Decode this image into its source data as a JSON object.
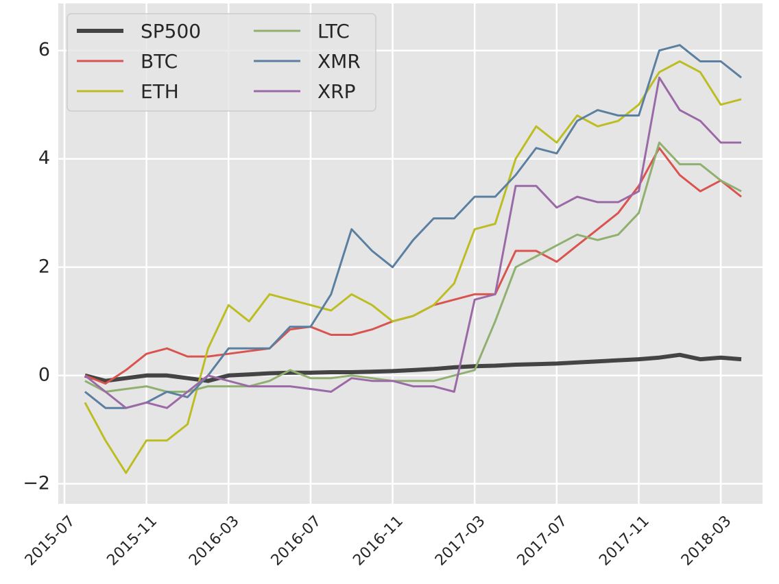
{
  "chart_data": {
    "type": "line",
    "x": [
      "2015-08",
      "2015-09",
      "2015-10",
      "2015-11",
      "2015-12",
      "2016-01",
      "2016-02",
      "2016-03",
      "2016-04",
      "2016-05",
      "2016-06",
      "2016-07",
      "2016-08",
      "2016-09",
      "2016-10",
      "2016-11",
      "2016-12",
      "2017-01",
      "2017-02",
      "2017-03",
      "2017-04",
      "2017-05",
      "2017-06",
      "2017-07",
      "2017-08",
      "2017-09",
      "2017-10",
      "2017-11",
      "2017-12",
      "2018-01",
      "2018-02",
      "2018-03",
      "2018-04"
    ],
    "series": [
      {
        "name": "SP500",
        "color": "#444444",
        "linewidth": 6,
        "values": [
          0,
          -0.1,
          -0.05,
          0,
          0,
          -0.05,
          -0.1,
          0,
          0.02,
          0.04,
          0.05,
          0.05,
          0.06,
          0.06,
          0.07,
          0.08,
          0.1,
          0.12,
          0.15,
          0.17,
          0.18,
          0.2,
          0.21,
          0.22,
          0.24,
          0.26,
          0.28,
          0.3,
          0.33,
          0.38,
          0.3,
          0.33,
          0.3
        ]
      },
      {
        "name": "BTC",
        "color": "#d9534f",
        "linewidth": 3,
        "values": [
          0,
          -0.15,
          0.1,
          0.4,
          0.5,
          0.35,
          0.35,
          0.4,
          0.45,
          0.5,
          0.85,
          0.9,
          0.75,
          0.75,
          0.85,
          1.0,
          1.1,
          1.3,
          1.4,
          1.5,
          1.5,
          2.3,
          2.3,
          2.1,
          2.4,
          2.7,
          3.0,
          3.5,
          4.2,
          3.7,
          3.4,
          3.6,
          3.3
        ]
      },
      {
        "name": "ETH",
        "color": "#bcbd22",
        "linewidth": 3,
        "values": [
          -0.5,
          -1.2,
          -1.8,
          -1.2,
          -1.2,
          -0.9,
          0.5,
          1.3,
          1.0,
          1.5,
          1.4,
          1.3,
          1.2,
          1.5,
          1.3,
          1.0,
          1.1,
          1.3,
          1.7,
          2.7,
          2.8,
          4.0,
          4.6,
          4.3,
          4.8,
          4.6,
          4.7,
          5.0,
          5.6,
          5.8,
          5.6,
          5.0,
          5.1
        ]
      },
      {
        "name": "LTC",
        "color": "#8fb06e",
        "linewidth": 3,
        "values": [
          -0.1,
          -0.3,
          -0.25,
          -0.2,
          -0.3,
          -0.3,
          -0.2,
          -0.2,
          -0.2,
          -0.1,
          0.1,
          -0.05,
          -0.05,
          0.0,
          -0.05,
          -0.1,
          -0.1,
          -0.1,
          0.0,
          0.1,
          1.0,
          2.0,
          2.2,
          2.4,
          2.6,
          2.5,
          2.6,
          3.0,
          4.3,
          3.9,
          3.9,
          3.6,
          3.4
        ]
      },
      {
        "name": "XMR",
        "color": "#5b7fa0",
        "linewidth": 3,
        "values": [
          -0.3,
          -0.6,
          -0.6,
          -0.5,
          -0.3,
          -0.4,
          0.0,
          0.5,
          0.5,
          0.5,
          0.9,
          0.9,
          1.5,
          2.7,
          2.3,
          2.0,
          2.5,
          2.9,
          2.9,
          3.3,
          3.3,
          3.7,
          4.2,
          4.1,
          4.7,
          4.9,
          4.8,
          4.8,
          6.0,
          6.1,
          5.8,
          5.8,
          5.5
        ]
      },
      {
        "name": "XRP",
        "color": "#9b6aa6",
        "linewidth": 3,
        "values": [
          0.0,
          -0.3,
          -0.6,
          -0.5,
          -0.6,
          -0.3,
          0.0,
          -0.1,
          -0.2,
          -0.2,
          -0.2,
          -0.25,
          -0.3,
          -0.05,
          -0.1,
          -0.1,
          -0.2,
          -0.2,
          -0.3,
          1.4,
          1.5,
          3.5,
          3.5,
          3.1,
          3.3,
          3.2,
          3.2,
          3.4,
          5.5,
          4.9,
          4.7,
          4.3,
          4.3
        ]
      }
    ],
    "xlim": [
      "2015-07",
      "2018-04"
    ],
    "xticks": [
      "2015-07",
      "2015-11",
      "2016-03",
      "2016-07",
      "2016-11",
      "2017-03",
      "2017-07",
      "2017-11",
      "2018-03"
    ],
    "ylim": [
      -2.37,
      6.87
    ],
    "yticks": [
      {
        "value": -2,
        "label": "−2"
      },
      0,
      2,
      4,
      6
    ],
    "grid": true,
    "legend": "upper left",
    "legend_columns": 2
  }
}
